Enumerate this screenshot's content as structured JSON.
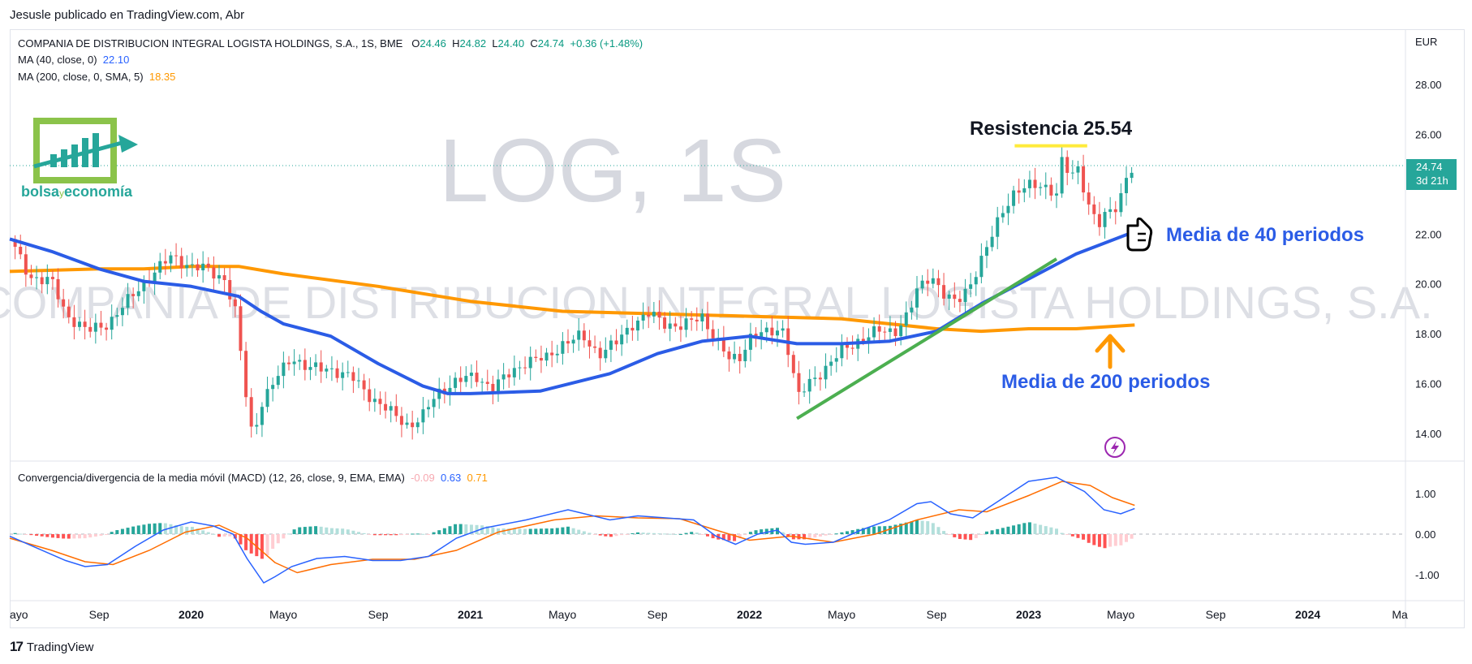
{
  "caption": "Jesusle publicado en TradingView.com, Abr",
  "footer": {
    "brand": "TradingView",
    "mark": "17"
  },
  "legend": {
    "symbol_line": "COMPANIA DE DISTRIBUCION INTEGRAL LOGISTA HOLDINGS, S.A., 1S, BME",
    "o_label": "O",
    "o_value": "24.46",
    "h_label": "H",
    "h_value": "24.82",
    "l_label": "L",
    "l_value": "24.40",
    "c_label": "C",
    "c_value": "24.74",
    "change": "+0.36 (+1.48%)",
    "ma40_label": "MA (40, close, 0)",
    "ma40_value": "22.10",
    "ma200_label": "MA (200, close, 0, SMA, 5)",
    "ma200_value": "18.35",
    "macd_label": "Convergencia/divergencia de la media móvil (MACD) (12, 26, close, 9, EMA, EMA)",
    "macd_hist": "-0.09",
    "macd_line": "0.63",
    "macd_signal": "0.71"
  },
  "watermark": {
    "ticker": "LOG, 1S",
    "name": "COMPANIA DE DISTRIBUCION INTEGRAL LOGISTA HOLDINGS, S.A."
  },
  "logo": {
    "part1": "bolsa",
    "part2": "y",
    "part3": "economía"
  },
  "annotations": {
    "resistance": "Resistencia 25.54",
    "ma40": "Media de 40 periodos",
    "ma200": "Media de 200 periodos"
  },
  "price_badge": {
    "price": "24.74",
    "countdown": "3d 21h"
  },
  "colors": {
    "up": "#26a69a",
    "down": "#ef5350",
    "ma40": "#2b5ce6",
    "ma200": "#ff9800",
    "trend": "#4caf50",
    "resistance": "#ffeb3b",
    "macd": "#2962ff",
    "signal": "#ff6d00",
    "hist_up_strong": "#26a69a",
    "hist_up_weak": "#b2dfdb",
    "hist_down_strong": "#ff5252",
    "hist_down_weak": "#ffcdd2"
  },
  "chart_data": [
    {
      "type": "candlestick",
      "title": "COMPANIA DE DISTRIBUCION INTEGRAL LOGISTA HOLDINGS, S.A., 1S, BME",
      "currency": "EUR",
      "ylim": [
        13,
        29.5
      ],
      "yticks": [
        "28.00",
        "26.00",
        "24.00",
        "22.00",
        "20.00",
        "18.00",
        "16.00",
        "14.00"
      ],
      "xticks": [
        "ayo",
        "Sep",
        "2020",
        "Mayo",
        "Sep",
        "2021",
        "Mayo",
        "Sep",
        "2022",
        "Mayo",
        "Sep",
        "2023",
        "Mayo",
        "Sep",
        "2024",
        "Ma"
      ],
      "xtick_t": [
        2019.35,
        2019.67,
        2020.0,
        2020.33,
        2020.67,
        2021.0,
        2021.33,
        2021.67,
        2022.0,
        2022.33,
        2022.67,
        2023.0,
        2023.33,
        2023.67,
        2024.0,
        2024.33
      ],
      "close_path": [
        [
          2019.35,
          21.8
        ],
        [
          2019.42,
          20.3
        ],
        [
          2019.5,
          20.1
        ],
        [
          2019.55,
          18.8
        ],
        [
          2019.63,
          18.1
        ],
        [
          2019.7,
          18.4
        ],
        [
          2019.78,
          19.4
        ],
        [
          2019.86,
          20.4
        ],
        [
          2019.93,
          21.1
        ],
        [
          2020.0,
          20.7
        ],
        [
          2020.05,
          20.6
        ],
        [
          2020.12,
          20.2
        ],
        [
          2020.16,
          18.8
        ],
        [
          2020.19,
          16.0
        ],
        [
          2020.22,
          13.8
        ],
        [
          2020.25,
          15.2
        ],
        [
          2020.3,
          16.1
        ],
        [
          2020.36,
          17.1
        ],
        [
          2020.42,
          16.6
        ],
        [
          2020.5,
          16.6
        ],
        [
          2020.58,
          16.2
        ],
        [
          2020.65,
          15.4
        ],
        [
          2020.72,
          14.8
        ],
        [
          2020.78,
          14.3
        ],
        [
          2020.83,
          14.7
        ],
        [
          2020.88,
          15.6
        ],
        [
          2020.95,
          16.1
        ],
        [
          2021.02,
          16.3
        ],
        [
          2021.08,
          15.8
        ],
        [
          2021.14,
          16.4
        ],
        [
          2021.2,
          16.9
        ],
        [
          2021.27,
          17.0
        ],
        [
          2021.33,
          17.6
        ],
        [
          2021.4,
          17.9
        ],
        [
          2021.46,
          17.2
        ],
        [
          2021.52,
          17.6
        ],
        [
          2021.58,
          18.4
        ],
        [
          2021.64,
          18.8
        ],
        [
          2021.7,
          18.4
        ],
        [
          2021.76,
          18.3
        ],
        [
          2021.83,
          18.7
        ],
        [
          2021.88,
          17.8
        ],
        [
          2021.93,
          16.9
        ],
        [
          2021.97,
          17.1
        ],
        [
          2022.0,
          17.9
        ],
        [
          2022.06,
          18.0
        ],
        [
          2022.12,
          18.2
        ],
        [
          2022.15,
          16.9
        ],
        [
          2022.17,
          15.4
        ],
        [
          2022.22,
          16.1
        ],
        [
          2022.27,
          16.6
        ],
        [
          2022.33,
          17.3
        ],
        [
          2022.4,
          17.8
        ],
        [
          2022.46,
          18.1
        ],
        [
          2022.52,
          18.1
        ],
        [
          2022.57,
          18.8
        ],
        [
          2022.6,
          19.7
        ],
        [
          2022.65,
          20.4
        ],
        [
          2022.7,
          19.5
        ],
        [
          2022.74,
          19.2
        ],
        [
          2022.79,
          20.0
        ],
        [
          2022.85,
          21.4
        ],
        [
          2022.9,
          22.8
        ],
        [
          2022.94,
          23.6
        ],
        [
          2023.0,
          23.9
        ],
        [
          2023.05,
          24.0
        ],
        [
          2023.1,
          23.6
        ],
        [
          2023.12,
          24.9
        ],
        [
          2023.15,
          24.3
        ],
        [
          2023.18,
          24.7
        ],
        [
          2023.21,
          23.3
        ],
        [
          2023.25,
          22.3
        ],
        [
          2023.28,
          22.8
        ],
        [
          2023.32,
          23.2
        ],
        [
          2023.35,
          24.3
        ],
        [
          2023.38,
          24.74
        ]
      ]
    },
    {
      "type": "line",
      "name": "MA (40, close, 0)",
      "points": [
        [
          2019.35,
          21.8
        ],
        [
          2019.5,
          21.3
        ],
        [
          2019.67,
          20.6
        ],
        [
          2019.83,
          20.1
        ],
        [
          2020.0,
          19.9
        ],
        [
          2020.17,
          19.5
        ],
        [
          2020.25,
          18.9
        ],
        [
          2020.33,
          18.4
        ],
        [
          2020.5,
          17.9
        ],
        [
          2020.67,
          16.8
        ],
        [
          2020.83,
          15.9
        ],
        [
          2020.92,
          15.6
        ],
        [
          2021.0,
          15.6
        ],
        [
          2021.25,
          15.7
        ],
        [
          2021.5,
          16.4
        ],
        [
          2021.67,
          17.2
        ],
        [
          2021.83,
          17.7
        ],
        [
          2022.0,
          17.9
        ],
        [
          2022.17,
          17.6
        ],
        [
          2022.33,
          17.6
        ],
        [
          2022.5,
          17.7
        ],
        [
          2022.67,
          18.1
        ],
        [
          2022.83,
          19.2
        ],
        [
          2023.0,
          20.2
        ],
        [
          2023.17,
          21.2
        ],
        [
          2023.38,
          22.1
        ]
      ]
    },
    {
      "type": "line",
      "name": "MA (200, close, 0, SMA, 5)",
      "points": [
        [
          2019.35,
          20.5
        ],
        [
          2019.67,
          20.6
        ],
        [
          2019.83,
          20.6
        ],
        [
          2020.0,
          20.7
        ],
        [
          2020.17,
          20.7
        ],
        [
          2020.33,
          20.4
        ],
        [
          2020.67,
          19.9
        ],
        [
          2021.0,
          19.3
        ],
        [
          2021.33,
          18.9
        ],
        [
          2021.67,
          18.8
        ],
        [
          2022.0,
          18.7
        ],
        [
          2022.33,
          18.6
        ],
        [
          2022.67,
          18.2
        ],
        [
          2022.83,
          18.1
        ],
        [
          2023.0,
          18.2
        ],
        [
          2023.17,
          18.2
        ],
        [
          2023.38,
          18.35
        ]
      ]
    },
    {
      "type": "line",
      "name": "trend",
      "points": [
        [
          2022.17,
          14.6
        ],
        [
          2023.1,
          21.0
        ]
      ]
    },
    {
      "type": "line",
      "name": "resistance",
      "points": [
        [
          2022.95,
          25.54
        ],
        [
          2023.21,
          25.54
        ]
      ]
    },
    {
      "type": "bar+line",
      "title": "Convergencia/divergencia de la media móvil (MACD) (12, 26, close, 9, EMA, EMA)",
      "ylim": [
        -1.35,
        1.6
      ],
      "yticks": [
        "1.00",
        "0.00",
        "-1.00"
      ],
      "macd": [
        [
          2019.35,
          -0.05
        ],
        [
          2019.45,
          -0.35
        ],
        [
          2019.55,
          -0.65
        ],
        [
          2019.62,
          -0.8
        ],
        [
          2019.7,
          -0.75
        ],
        [
          2019.8,
          -0.3
        ],
        [
          2019.9,
          0.1
        ],
        [
          2020.0,
          0.3
        ],
        [
          2020.08,
          0.2
        ],
        [
          2020.15,
          0.0
        ],
        [
          2020.2,
          -0.6
        ],
        [
          2020.26,
          -1.2
        ],
        [
          2020.3,
          -1.05
        ],
        [
          2020.36,
          -0.8
        ],
        [
          2020.45,
          -0.6
        ],
        [
          2020.55,
          -0.55
        ],
        [
          2020.65,
          -0.65
        ],
        [
          2020.75,
          -0.65
        ],
        [
          2020.85,
          -0.55
        ],
        [
          2020.95,
          -0.1
        ],
        [
          2021.05,
          0.15
        ],
        [
          2021.2,
          0.35
        ],
        [
          2021.35,
          0.6
        ],
        [
          2021.5,
          0.35
        ],
        [
          2021.6,
          0.45
        ],
        [
          2021.7,
          0.4
        ],
        [
          2021.8,
          0.35
        ],
        [
          2021.88,
          -0.05
        ],
        [
          2021.95,
          -0.25
        ],
        [
          2022.03,
          0.0
        ],
        [
          2022.1,
          0.1
        ],
        [
          2022.15,
          -0.2
        ],
        [
          2022.2,
          -0.25
        ],
        [
          2022.3,
          -0.2
        ],
        [
          2022.4,
          0.1
        ],
        [
          2022.5,
          0.35
        ],
        [
          2022.6,
          0.75
        ],
        [
          2022.65,
          0.8
        ],
        [
          2022.72,
          0.5
        ],
        [
          2022.8,
          0.4
        ],
        [
          2022.9,
          0.85
        ],
        [
          2023.0,
          1.3
        ],
        [
          2023.1,
          1.4
        ],
        [
          2023.2,
          1.05
        ],
        [
          2023.27,
          0.6
        ],
        [
          2023.33,
          0.5
        ],
        [
          2023.38,
          0.63
        ]
      ],
      "signal": [
        [
          2019.35,
          -0.1
        ],
        [
          2019.5,
          -0.4
        ],
        [
          2019.62,
          -0.68
        ],
        [
          2019.72,
          -0.75
        ],
        [
          2019.85,
          -0.4
        ],
        [
          2019.98,
          0.05
        ],
        [
          2020.1,
          0.22
        ],
        [
          2020.2,
          -0.1
        ],
        [
          2020.3,
          -0.7
        ],
        [
          2020.38,
          -0.95
        ],
        [
          2020.5,
          -0.75
        ],
        [
          2020.65,
          -0.62
        ],
        [
          2020.8,
          -0.62
        ],
        [
          2020.95,
          -0.4
        ],
        [
          2021.1,
          0.05
        ],
        [
          2021.3,
          0.35
        ],
        [
          2021.45,
          0.45
        ],
        [
          2021.6,
          0.4
        ],
        [
          2021.75,
          0.38
        ],
        [
          2021.88,
          0.1
        ],
        [
          2022.0,
          -0.15
        ],
        [
          2022.15,
          -0.05
        ],
        [
          2022.3,
          -0.2
        ],
        [
          2022.45,
          0.0
        ],
        [
          2022.6,
          0.35
        ],
        [
          2022.75,
          0.6
        ],
        [
          2022.85,
          0.55
        ],
        [
          2023.0,
          0.95
        ],
        [
          2023.12,
          1.3
        ],
        [
          2023.22,
          1.2
        ],
        [
          2023.3,
          0.9
        ],
        [
          2023.38,
          0.71
        ]
      ]
    }
  ]
}
